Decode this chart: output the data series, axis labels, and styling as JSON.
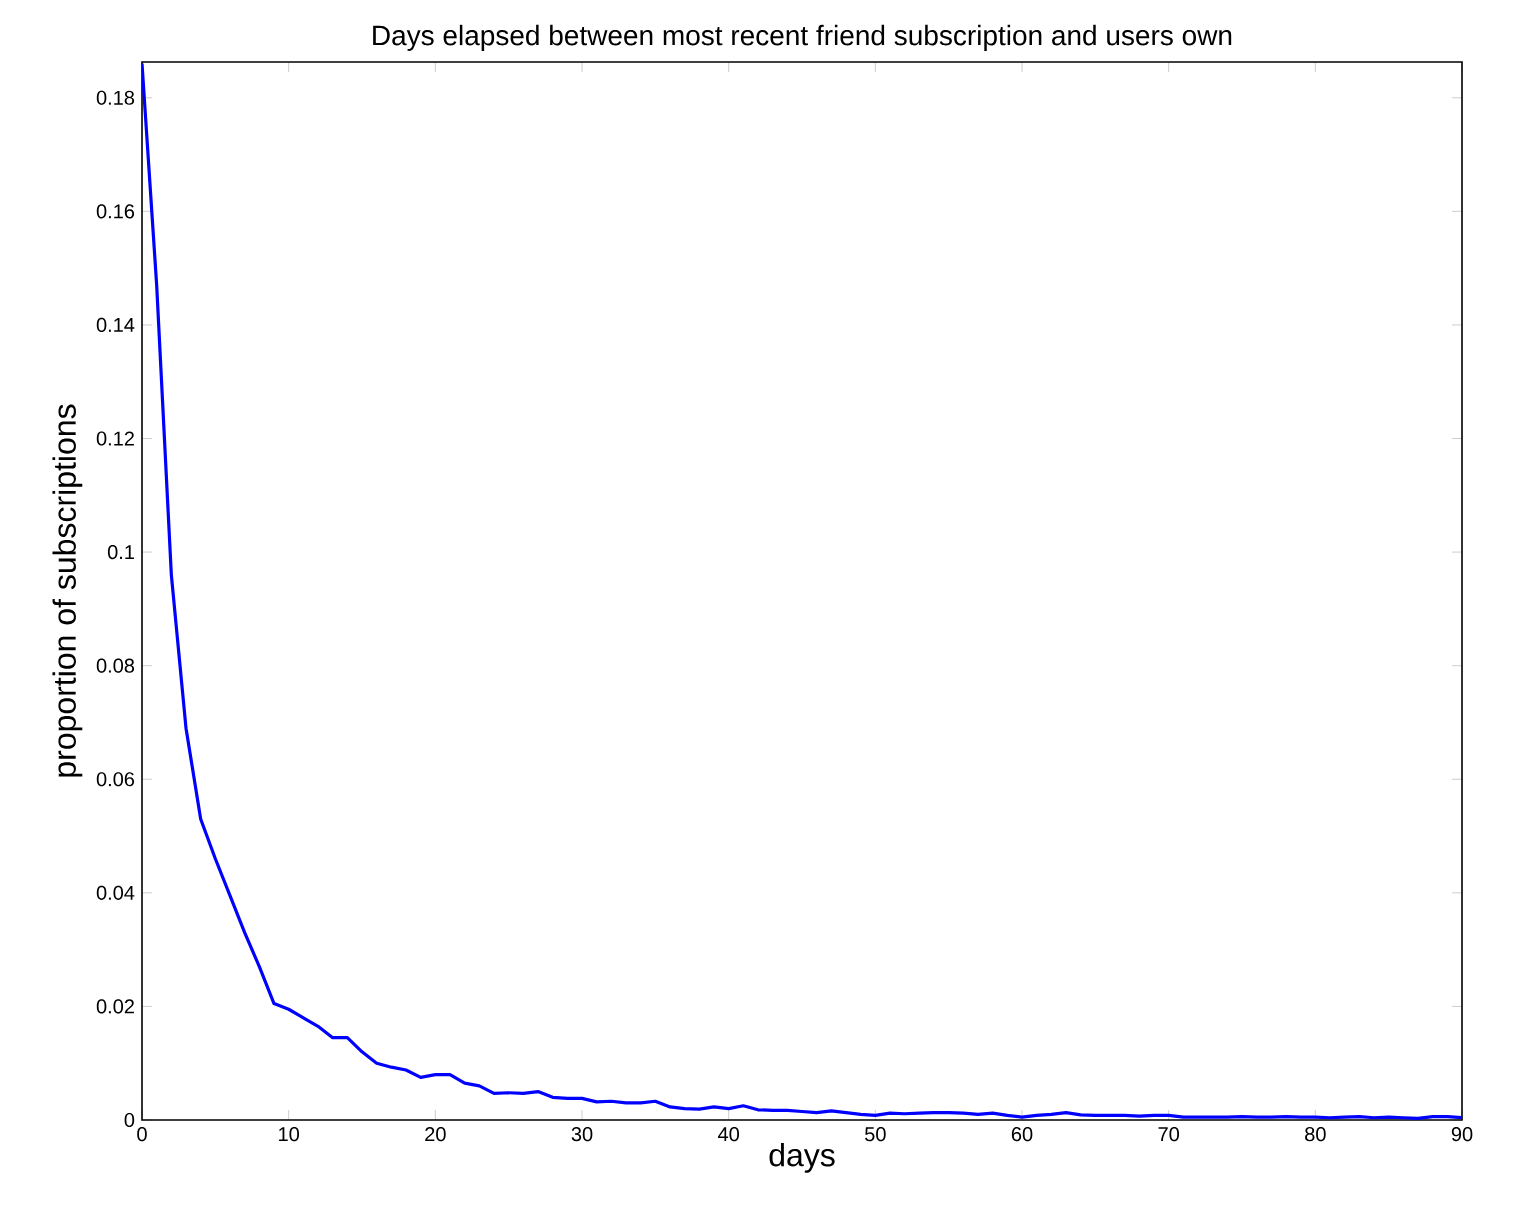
{
  "chart_data": {
    "type": "line",
    "title": "Days elapsed between most recent friend subscription and users own",
    "xlabel": "days",
    "ylabel": "proportion of subscriptions",
    "x": [
      0,
      1,
      2,
      3,
      4,
      5,
      6,
      7,
      8,
      9,
      10,
      11,
      12,
      13,
      14,
      15,
      16,
      17,
      18,
      19,
      20,
      21,
      22,
      23,
      24,
      25,
      26,
      27,
      28,
      29,
      30,
      31,
      32,
      33,
      34,
      35,
      36,
      37,
      38,
      39,
      40,
      41,
      42,
      43,
      44,
      45,
      46,
      47,
      48,
      49,
      50,
      51,
      52,
      53,
      54,
      55,
      56,
      57,
      58,
      59,
      60,
      61,
      62,
      63,
      64,
      65,
      66,
      67,
      68,
      69,
      70,
      71,
      72,
      73,
      74,
      75,
      76,
      77,
      78,
      79,
      80,
      81,
      82,
      83,
      84,
      85,
      86,
      87,
      88,
      89,
      90
    ],
    "series": [
      {
        "color": "#0000ff",
        "values": [
          0.186,
          0.147,
          0.096,
          0.069,
          0.053,
          0.046,
          0.0395,
          0.033,
          0.027,
          0.0205,
          0.0195,
          0.018,
          0.0165,
          0.0145,
          0.0145,
          0.012,
          0.01,
          0.0093,
          0.0088,
          0.0075,
          0.008,
          0.008,
          0.0065,
          0.006,
          0.0047,
          0.0048,
          0.0047,
          0.005,
          0.004,
          0.0038,
          0.0038,
          0.0032,
          0.0033,
          0.003,
          0.003,
          0.0033,
          0.0023,
          0.002,
          0.0019,
          0.0023,
          0.002,
          0.0025,
          0.0018,
          0.0017,
          0.0017,
          0.0015,
          0.0013,
          0.0016,
          0.0013,
          0.001,
          0.0008,
          0.0012,
          0.0011,
          0.0012,
          0.0013,
          0.0013,
          0.0012,
          0.001,
          0.0012,
          0.0008,
          0.0005,
          0.0008,
          0.001,
          0.0013,
          0.0009,
          0.0008,
          0.0008,
          0.0008,
          0.0007,
          0.0008,
          0.0008,
          0.0005,
          0.0005,
          0.0005,
          0.0005,
          0.0006,
          0.0005,
          0.0005,
          0.0006,
          0.0005,
          0.0005,
          0.0004,
          0.0005,
          0.0006,
          0.0004,
          0.0005,
          0.0004,
          0.0003,
          0.0006,
          0.0006,
          0.0004
        ]
      }
    ],
    "xlim": [
      0,
      90
    ],
    "ylim": [
      0,
      0.1863
    ],
    "xticks": [
      0,
      10,
      20,
      30,
      40,
      50,
      60,
      70,
      80,
      90
    ],
    "yticks": [
      0,
      0.02,
      0.04,
      0.06,
      0.08,
      0.1,
      0.12,
      0.14,
      0.16,
      0.18
    ],
    "grid": false,
    "legend": false,
    "marker": "none",
    "line_style": "solid"
  }
}
